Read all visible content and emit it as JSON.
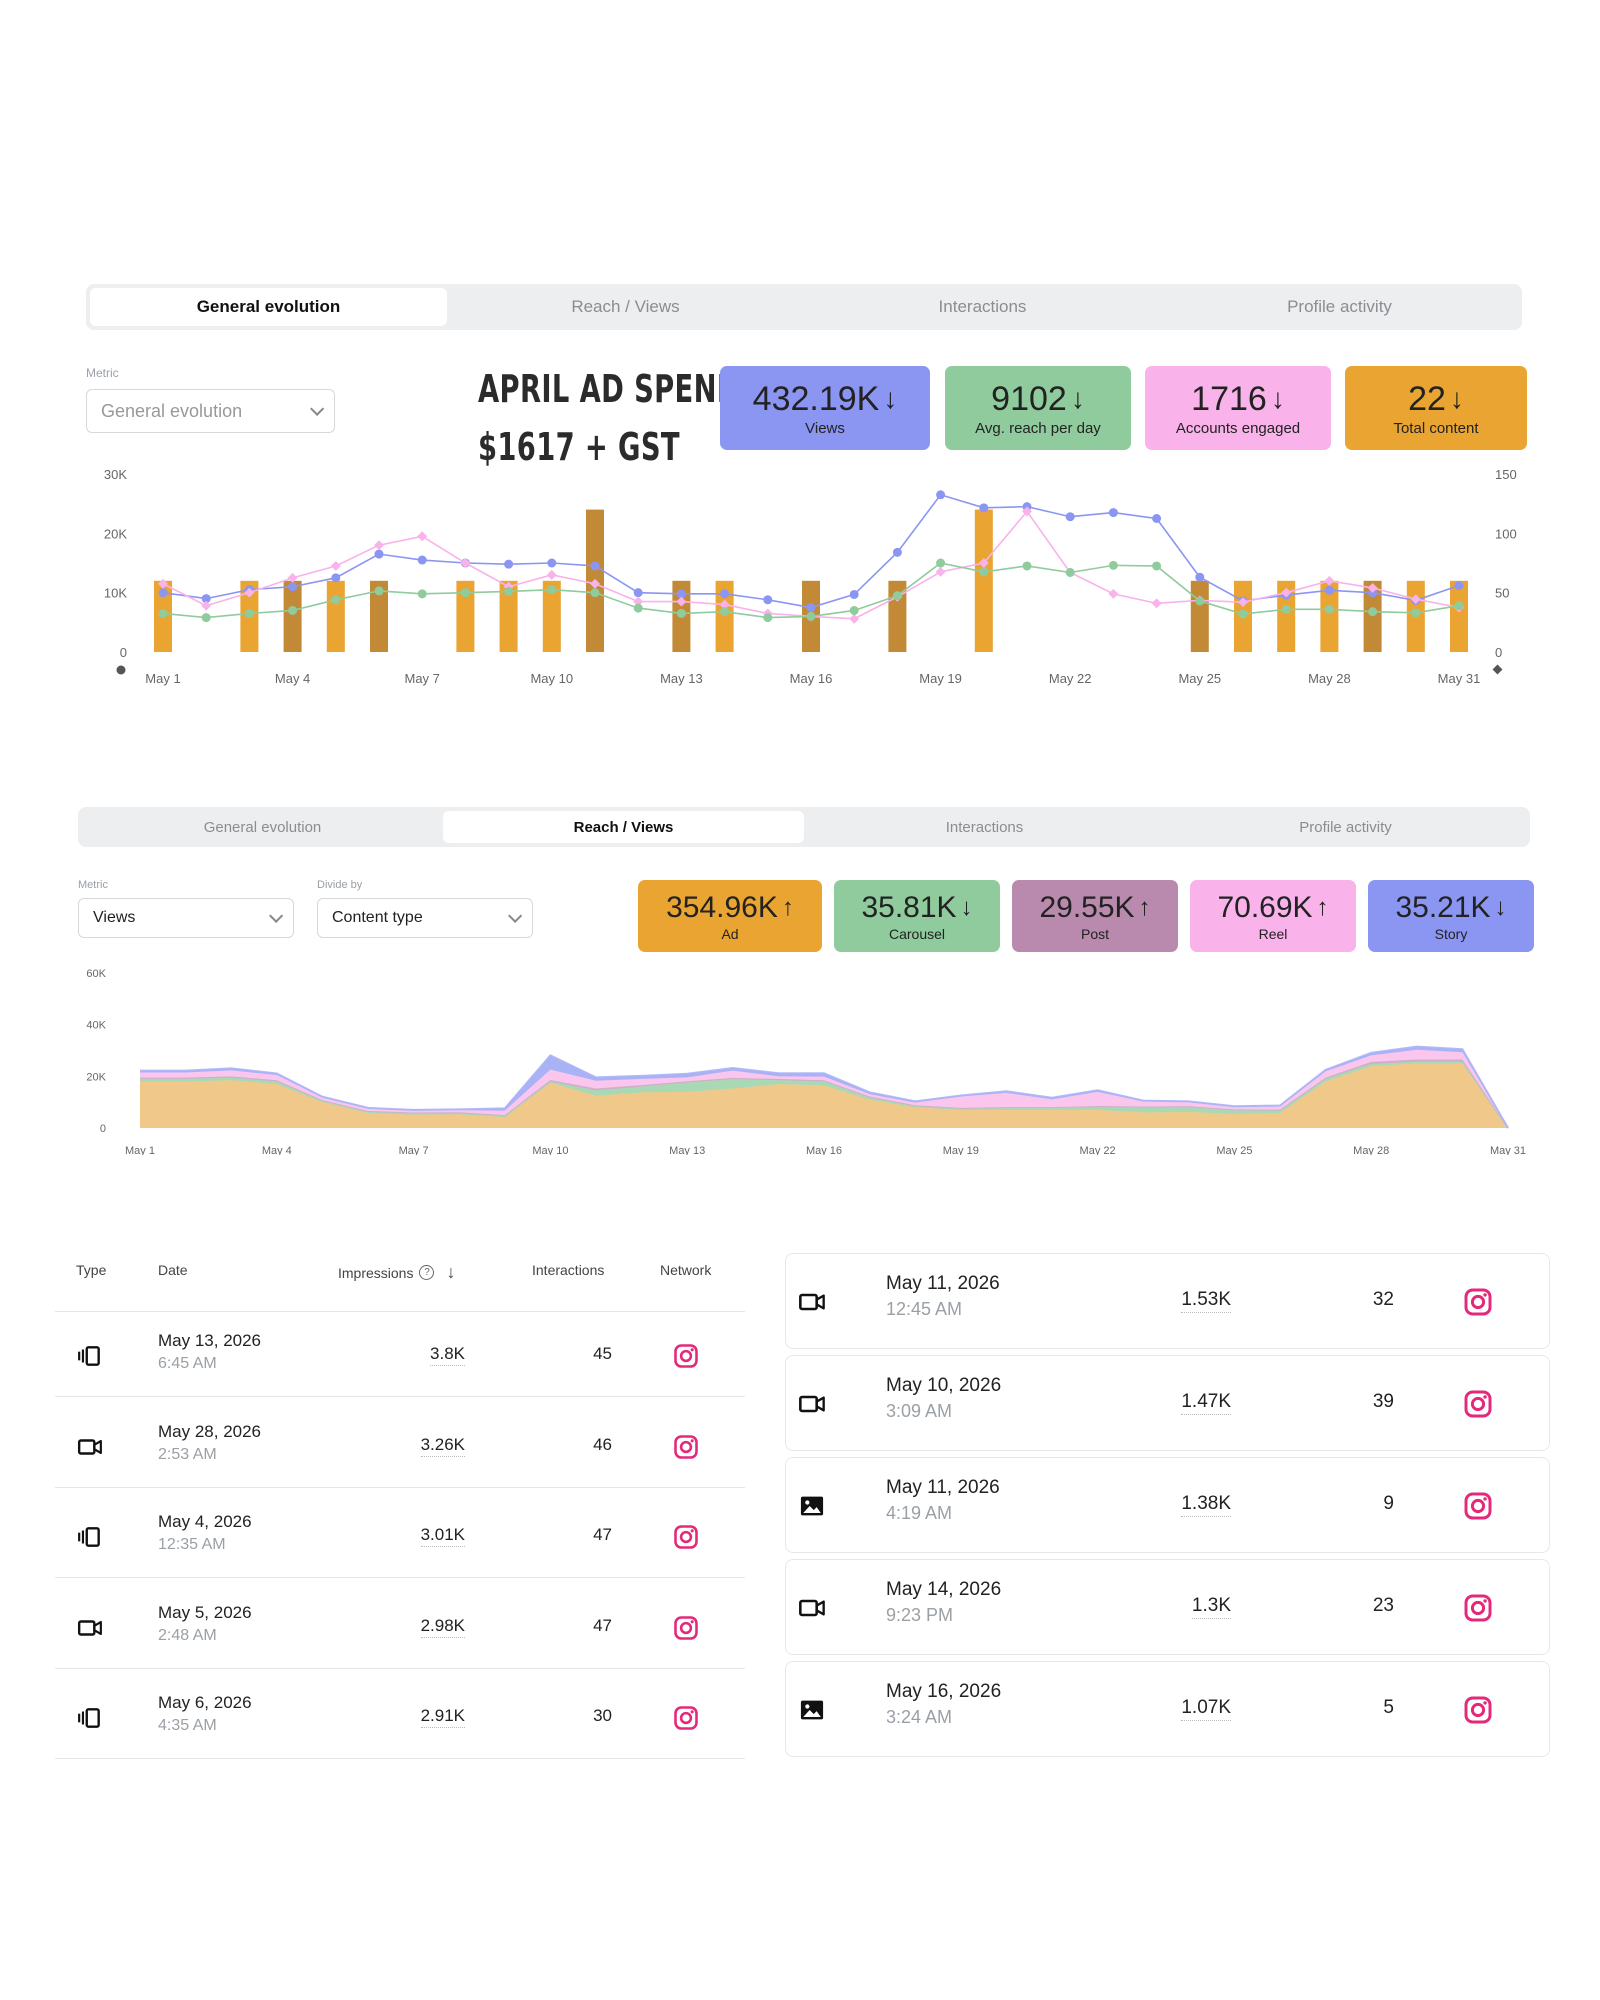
{
  "panel1": {
    "tabs": [
      "General evolution",
      "Reach / Views",
      "Interactions",
      "Profile activity"
    ],
    "metric_label": "Metric",
    "metric_value": "General evolution",
    "ad_spend_line1": "APRIL AD SPEND:",
    "ad_spend_line2": "$1617 + GST",
    "cards": [
      {
        "value": "432.19K",
        "trend": "down",
        "arrow": "↓",
        "label": "Views",
        "color": "#8b95f2"
      },
      {
        "value": "9102",
        "trend": "down",
        "arrow": "↓",
        "label": "Avg. reach per day",
        "color": "#8fcb9c"
      },
      {
        "value": "1716",
        "trend": "down",
        "arrow": "↓",
        "label": "Accounts engaged",
        "color": "#f9b2ea"
      },
      {
        "value": "22",
        "trend": "down",
        "arrow": "↓",
        "label": "Total content",
        "color": "#e9a432"
      }
    ]
  },
  "panel2": {
    "tabs": [
      "General evolution",
      "Reach / Views",
      "Interactions",
      "Profile activity"
    ],
    "metric_label": "Metric",
    "metric_value": "Views",
    "divide_label": "Divide by",
    "divide_value": "Content type",
    "cards": [
      {
        "value": "354.96K",
        "trend": "up",
        "arrow": "↑",
        "label": "Ad",
        "color": "#e9a432"
      },
      {
        "value": "35.81K",
        "trend": "down",
        "arrow": "↓",
        "label": "Carousel",
        "color": "#8fcb9c"
      },
      {
        "value": "29.55K",
        "trend": "up",
        "arrow": "↑",
        "label": "Post",
        "color": "#b98aad"
      },
      {
        "value": "70.69K",
        "trend": "up",
        "arrow": "↑",
        "label": "Reel",
        "color": "#f9b2ea"
      },
      {
        "value": "35.21K",
        "trend": "down",
        "arrow": "↓",
        "label": "Story",
        "color": "#8b95f2"
      }
    ]
  },
  "chart_data": [
    {
      "type": "bar",
      "x": [
        "May 1",
        "May 2",
        "May 3",
        "May 4",
        "May 5",
        "May 6",
        "May 7",
        "May 8",
        "May 9",
        "May 10",
        "May 11",
        "May 12",
        "May 13",
        "May 14",
        "May 15",
        "May 16",
        "May 17",
        "May 18",
        "May 19",
        "May 20",
        "May 21",
        "May 22",
        "May 23",
        "May 24",
        "May 25",
        "May 26",
        "May 27",
        "May 28",
        "May 29",
        "May 30",
        "May 31"
      ],
      "xticks": [
        "May 1",
        "May 4",
        "May 7",
        "May 10",
        "May 13",
        "May 16",
        "May 19",
        "May 22",
        "May 25",
        "May 28",
        "May 31"
      ],
      "yticks_left": [
        "0",
        "10K",
        "20K",
        "30K"
      ],
      "yticks_right": [
        "0",
        "50",
        "100",
        "150"
      ],
      "ylim_left": [
        0,
        30000
      ],
      "ylim_right": [
        0,
        150
      ],
      "grid": false,
      "bars": {
        "axis": "right",
        "values": [
          60,
          0,
          60,
          60,
          60,
          60,
          0,
          60,
          60,
          60,
          120,
          0,
          60,
          60,
          0,
          60,
          0,
          60,
          0,
          120,
          0,
          0,
          0,
          0,
          60,
          60,
          60,
          60,
          60,
          60,
          60
        ],
        "colors": [
          "#e9a432",
          "#e9a432",
          "#e9a432",
          "#c28a36",
          "#e9a432",
          "#c28a36",
          "#e9a432",
          "#e9a432",
          "#e9a432",
          "#e9a432",
          "#c28a36",
          "#e9a432",
          "#c28a36",
          "#e9a432",
          "#e9a432",
          "#c28a36",
          "#e9a432",
          "#c28a36",
          "#e9a432",
          "#e9a432",
          "#e9a432",
          "#e9a432",
          "#e9a432",
          "#e9a432",
          "#c28a36",
          "#e9a432",
          "#e9a432",
          "#e9a432",
          "#c28a36",
          "#e9a432",
          "#e9a432"
        ]
      },
      "series": [
        {
          "color": "#8b95f2",
          "axis": "left",
          "values": [
            10000,
            9000,
            10500,
            11000,
            12500,
            16500,
            15500,
            15000,
            14800,
            15000,
            14500,
            10000,
            9800,
            9800,
            8800,
            7500,
            9700,
            16800,
            26500,
            24300,
            24500,
            22800,
            23500,
            22500,
            12600,
            8600,
            9600,
            10400,
            10000,
            8700,
            11200
          ]
        },
        {
          "color": "#f9b2ea",
          "axis": "left",
          "values": [
            11500,
            7800,
            10000,
            12500,
            14500,
            18000,
            19500,
            15000,
            11000,
            13000,
            11500,
            8500,
            8500,
            8000,
            6500,
            6000,
            5600,
            9300,
            13500,
            15000,
            23700,
            13400,
            9800,
            8200,
            8700,
            8400,
            10000,
            12000,
            10800,
            8900,
            7500
          ]
        },
        {
          "color": "#8fcb9c",
          "axis": "left",
          "values": [
            6500,
            5800,
            6500,
            7000,
            8800,
            10300,
            9800,
            10000,
            10200,
            10500,
            10000,
            7400,
            6500,
            6800,
            5800,
            6000,
            7000,
            9500,
            15000,
            13500,
            14500,
            13400,
            14600,
            14500,
            8600,
            6400,
            7200,
            7200,
            6800,
            6600,
            7800
          ]
        }
      ]
    },
    {
      "type": "area",
      "x": [
        "May 1",
        "May 2",
        "May 3",
        "May 4",
        "May 5",
        "May 6",
        "May 7",
        "May 8",
        "May 9",
        "May 10",
        "May 11",
        "May 12",
        "May 13",
        "May 14",
        "May 15",
        "May 16",
        "May 17",
        "May 18",
        "May 19",
        "May 20",
        "May 21",
        "May 22",
        "May 23",
        "May 24",
        "May 25",
        "May 26",
        "May 27",
        "May 28",
        "May 29",
        "May 30",
        "May 31"
      ],
      "xticks": [
        "May 1",
        "May 4",
        "May 7",
        "May 10",
        "May 13",
        "May 16",
        "May 19",
        "May 22",
        "May 25",
        "May 28",
        "May 31"
      ],
      "yticks": [
        "0",
        "20K",
        "40K",
        "60K"
      ],
      "ylim": [
        0,
        60000
      ],
      "stacked": true,
      "series": [
        {
          "name": "Ad",
          "color": "#f0c889",
          "values": [
            18000,
            18000,
            18500,
            17000,
            10000,
            5800,
            5200,
            5300,
            4200,
            17500,
            12500,
            13800,
            14000,
            15300,
            17000,
            16500,
            11000,
            8000,
            7000,
            7000,
            7000,
            7000,
            6000,
            6200,
            5400,
            5800,
            18000,
            24000,
            25000,
            25000,
            0
          ]
        },
        {
          "name": "Carousel",
          "color": "#a9d9b4",
          "values": [
            1000,
            1000,
            1000,
            1000,
            500,
            500,
            500,
            500,
            500,
            500,
            2000,
            2200,
            3600,
            3600,
            1500,
            1500,
            900,
            500,
            500,
            800,
            800,
            1200,
            2000,
            1900,
            1500,
            1000,
            1000,
            800,
            700,
            700,
            0
          ]
        },
        {
          "name": "Post",
          "color": "#cdb0c8",
          "values": [
            500,
            500,
            500,
            500,
            300,
            300,
            300,
            300,
            300,
            600,
            800,
            600,
            500,
            500,
            500,
            500,
            300,
            300,
            300,
            300,
            300,
            300,
            300,
            300,
            300,
            300,
            500,
            800,
            800,
            800,
            0
          ]
        },
        {
          "name": "Reel",
          "color": "#fbc6ee",
          "values": [
            2000,
            2000,
            2300,
            2000,
            1000,
            900,
            700,
            800,
            1700,
            4000,
            3000,
            2400,
            1500,
            2800,
            1000,
            1400,
            900,
            1000,
            4400,
            5500,
            3000,
            5500,
            2000,
            1600,
            900,
            1300,
            2400,
            2500,
            3800,
            2800,
            0
          ]
        },
        {
          "name": "Story",
          "color": "#aab2f6",
          "values": [
            700,
            700,
            800,
            600,
            300,
            300,
            300,
            300,
            900,
            5500,
            1300,
            1200,
            1400,
            1000,
            1200,
            1300,
            700,
            500,
            400,
            600,
            600,
            600,
            300,
            300,
            300,
            300,
            600,
            1000,
            1200,
            1200,
            0
          ]
        }
      ]
    }
  ],
  "table": {
    "headers": {
      "type": "Type",
      "date": "Date",
      "impressions": "Impressions",
      "interactions": "Interactions",
      "network": "Network"
    },
    "left_rows": [
      {
        "type_icon": "carousel-icon",
        "date": "May 13, 2026",
        "time": "6:45 AM",
        "impressions": "3.8K",
        "interactions": "45",
        "network_icon": "instagram-icon"
      },
      {
        "type_icon": "video-icon",
        "date": "May 28, 2026",
        "time": "2:53 AM",
        "impressions": "3.26K",
        "interactions": "46",
        "network_icon": "instagram-icon"
      },
      {
        "type_icon": "carousel-icon",
        "date": "May 4, 2026",
        "time": "12:35 AM",
        "impressions": "3.01K",
        "interactions": "47",
        "network_icon": "instagram-icon"
      },
      {
        "type_icon": "video-icon",
        "date": "May 5, 2026",
        "time": "2:48 AM",
        "impressions": "2.98K",
        "interactions": "47",
        "network_icon": "instagram-icon"
      },
      {
        "type_icon": "carousel-icon",
        "date": "May 6, 2026",
        "time": "4:35 AM",
        "impressions": "2.91K",
        "interactions": "30",
        "network_icon": "instagram-icon"
      }
    ],
    "right_rows": [
      {
        "type_icon": "video-icon",
        "date": "May 11, 2026",
        "time": "12:45 AM",
        "impressions": "1.53K",
        "interactions": "32",
        "network_icon": "instagram-icon"
      },
      {
        "type_icon": "video-icon",
        "date": "May 10, 2026",
        "time": "3:09 AM",
        "impressions": "1.47K",
        "interactions": "39",
        "network_icon": "instagram-icon"
      },
      {
        "type_icon": "image-icon",
        "date": "May 11, 2026",
        "time": "4:19 AM",
        "impressions": "1.38K",
        "interactions": "9",
        "network_icon": "instagram-icon"
      },
      {
        "type_icon": "video-icon",
        "date": "May 14, 2026",
        "time": "9:23 PM",
        "impressions": "1.3K",
        "interactions": "23",
        "network_icon": "instagram-icon"
      },
      {
        "type_icon": "image-icon",
        "date": "May 16, 2026",
        "time": "3:24 AM",
        "impressions": "1.07K",
        "interactions": "5",
        "network_icon": "instagram-icon"
      }
    ]
  }
}
